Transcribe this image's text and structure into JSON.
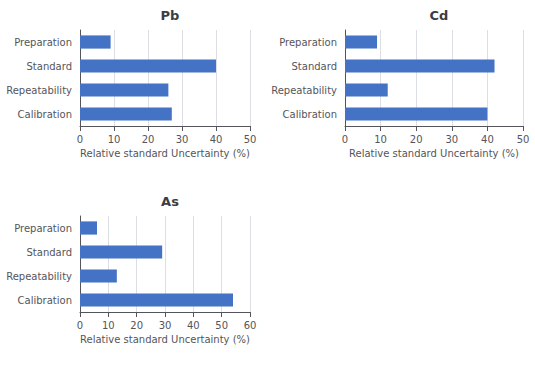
{
  "chart_data": [
    {
      "type": "bar",
      "orientation": "horizontal",
      "title": "Pb",
      "categories": [
        "Calibration",
        "Repeatability",
        "Standard",
        "Preparation"
      ],
      "values": [
        27,
        26,
        40,
        9
      ],
      "color": "#4472C4",
      "xlabel": "Relative standard Uncertainty (%)",
      "xlim": [
        0,
        50
      ],
      "xticks": [
        0,
        10,
        20,
        30,
        40,
        50
      ],
      "grid": true
    },
    {
      "type": "bar",
      "orientation": "horizontal",
      "title": "Cd",
      "categories": [
        "Calibration",
        "Repeatability",
        "Standard",
        "Preparation"
      ],
      "values": [
        40,
        12,
        42,
        9
      ],
      "color": "#4472C4",
      "xlabel": "Relative standard Uncertainty (%)",
      "xlim": [
        0,
        50
      ],
      "xticks": [
        0,
        10,
        20,
        30,
        40,
        50
      ],
      "grid": true
    },
    {
      "type": "bar",
      "orientation": "horizontal",
      "title": "As",
      "categories": [
        "Calibration",
        "Repeatability",
        "Standard",
        "Preparation"
      ],
      "values": [
        54,
        13,
        29,
        6
      ],
      "color": "#4472C4",
      "xlabel": "Relative standard Uncertainty (%)",
      "xlim": [
        0,
        60
      ],
      "xticks": [
        0,
        10,
        20,
        30,
        40,
        50,
        60
      ],
      "grid": true
    }
  ]
}
